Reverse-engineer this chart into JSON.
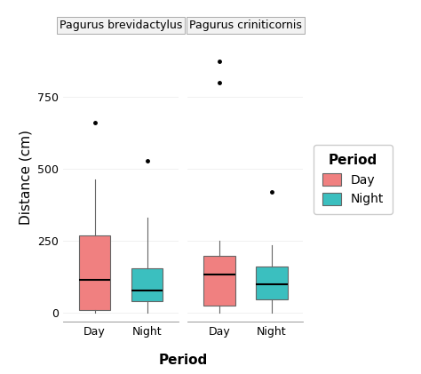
{
  "species": [
    "Pagurus brevidactylus",
    "Pagurus criniticornis"
  ],
  "groups": [
    "Day",
    "Night"
  ],
  "colors": {
    "Day": "#F08080",
    "Night": "#3BBFBF"
  },
  "box_edge_color": "#666666",
  "line_color": "#666666",
  "background_color": "#ffffff",
  "panel_background": "#ffffff",
  "xlabel": "Period",
  "ylabel": "Distance (cm)",
  "legend_title": "Period",
  "ylim": [
    -30,
    970
  ],
  "yticks": [
    0,
    250,
    500,
    750
  ],
  "yticklabels": [
    "0",
    "250",
    "500",
    "750"
  ],
  "boxes": {
    "Pagurus brevidactylus": {
      "Day": {
        "q1": 10,
        "median": 115,
        "q3": 268,
        "whisker_low": 0,
        "whisker_high": 465,
        "outliers": [
          660
        ]
      },
      "Night": {
        "q1": 42,
        "median": 78,
        "q3": 155,
        "whisker_low": 0,
        "whisker_high": 330,
        "outliers": [
          530
        ]
      }
    },
    "Pagurus criniticornis": {
      "Day": {
        "q1": 25,
        "median": 135,
        "q3": 200,
        "whisker_low": 0,
        "whisker_high": 250,
        "outliers": [
          800,
          875
        ]
      },
      "Night": {
        "q1": 48,
        "median": 100,
        "q3": 160,
        "whisker_low": 0,
        "whisker_high": 235,
        "outliers": [
          420
        ]
      }
    }
  },
  "facet_label_fontsize": 9,
  "tick_fontsize": 9,
  "axis_label_fontsize": 11,
  "legend_fontsize": 10,
  "legend_title_fontsize": 11
}
